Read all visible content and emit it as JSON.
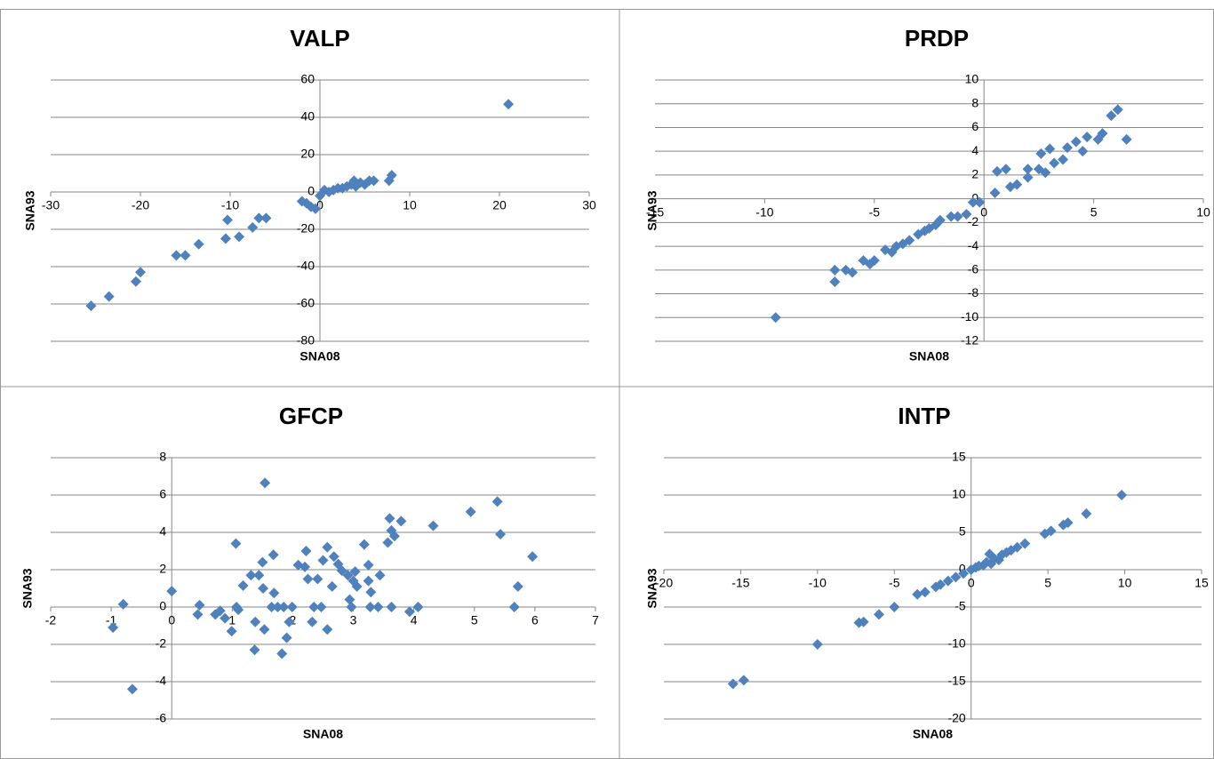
{
  "chart_data": [
    {
      "type": "scatter",
      "title": "VALP",
      "x_label": "SNA08",
      "y_label": "SNA93",
      "color": "#4f81bd",
      "grid": true,
      "xlim": [
        -30,
        30
      ],
      "xticks": [
        -30,
        -20,
        -10,
        0,
        10,
        20,
        30
      ],
      "ylim": [
        -80,
        60
      ],
      "yticks": [
        -80,
        -60,
        -40,
        -20,
        0,
        20,
        40,
        60
      ],
      "x": [
        -25.5,
        -23.5,
        -20.5,
        -20,
        -16,
        -15,
        -13.5,
        -10.5,
        -9,
        -10.3,
        -7.5,
        -6.8,
        -6,
        -2,
        -1.5,
        -1,
        -0.5,
        0,
        0.5,
        1,
        1.5,
        2,
        2.5,
        3,
        3.5,
        3.8,
        4,
        4.5,
        5,
        5.5,
        6,
        7.7,
        8,
        21
      ],
      "values": [
        -61,
        -56,
        -48,
        -43,
        -34,
        -34,
        -28,
        -25,
        -24,
        -15,
        -19,
        -14,
        -14,
        -5,
        -6,
        -8,
        -9,
        -2,
        1,
        0,
        1,
        2,
        2,
        3,
        4,
        6,
        3,
        5,
        4,
        6,
        6,
        6,
        9,
        47
      ]
    },
    {
      "type": "scatter",
      "title": "PRDP",
      "x_label": "SNA08",
      "y_label": "SNA93",
      "color": "#4f81bd",
      "grid": true,
      "xlim": [
        -15,
        10
      ],
      "xticks": [
        -15,
        -10,
        -5,
        0,
        5,
        10
      ],
      "ylim": [
        -12,
        10
      ],
      "yticks": [
        -12,
        -10,
        -8,
        -6,
        -4,
        -2,
        0,
        2,
        4,
        6,
        8,
        10
      ],
      "x": [
        -9.5,
        -6.8,
        -6.8,
        -6.3,
        -6,
        -5.5,
        -5.2,
        -5,
        -4.5,
        -4.2,
        -4,
        -3.7,
        -3.4,
        -3,
        -2.7,
        -2.5,
        -2.2,
        -2,
        -1.5,
        -1.2,
        -0.8,
        -0.5,
        -0.2,
        0.5,
        0.6,
        1,
        1.2,
        1.5,
        2,
        2,
        2.5,
        2.6,
        2.8,
        3,
        3.2,
        3.6,
        3.8,
        4.2,
        4.5,
        4.7,
        5.2,
        5.4,
        5.8,
        6.1,
        6.5
      ],
      "values": [
        -10,
        -7,
        -6,
        -6,
        -6.2,
        -5.2,
        -5.5,
        -5.2,
        -4.3,
        -4.5,
        -4,
        -3.8,
        -3.5,
        -3,
        -2.7,
        -2.5,
        -2.2,
        -1.8,
        -1.5,
        -1.5,
        -1.3,
        -0.3,
        -0.3,
        0.5,
        2.3,
        2.5,
        1,
        1.2,
        1.8,
        2.5,
        2.5,
        3.8,
        2.2,
        4.2,
        3,
        3.3,
        4.3,
        4.8,
        4,
        5.2,
        5,
        5.5,
        7,
        7.5,
        5
      ]
    },
    {
      "type": "scatter",
      "title": "GFCP",
      "x_label": "SNA08",
      "y_label": "SNA93",
      "color": "#4f81bd",
      "grid": true,
      "xlim": [
        -2,
        7
      ],
      "xticks": [
        -2,
        -1,
        0,
        1,
        2,
        3,
        4,
        5,
        6,
        7
      ],
      "ylim": [
        -6,
        8
      ],
      "yticks": [
        -6,
        -4,
        -2,
        0,
        2,
        4,
        6,
        8
      ],
      "x": [
        -0.97,
        -0.8,
        -0.65,
        0,
        0.43,
        0.46,
        0.72,
        0.8,
        0.88,
        0.99,
        1.06,
        1.07,
        1.1,
        1.18,
        1.31,
        1.37,
        1.38,
        1.44,
        1.5,
        1.51,
        1.53,
        1.54,
        1.65,
        1.69,
        1.68,
        1.75,
        1.82,
        1.85,
        1.9,
        1.94,
        1.99,
        2.09,
        2.22,
        2.2,
        2.25,
        2.32,
        2.35,
        2.41,
        2.47,
        2.5,
        2.57,
        2.57,
        2.65,
        2.68,
        2.75,
        2.81,
        2.91,
        2.94,
        2.97,
        3,
        3.03,
        3.06,
        3.18,
        3.25,
        3.25,
        3.29,
        3.28,
        3.41,
        3.44,
        3.63,
        3.57,
        3.6,
        3.63,
        3.68,
        3.79,
        3.93,
        4.07,
        4.32,
        4.94,
        5.38,
        5.43,
        5.66,
        5.72,
        5.96
      ],
      "values": [
        -1.1,
        0.15,
        -4.4,
        0.85,
        -0.4,
        0.1,
        -0.4,
        -0.2,
        -0.6,
        -1.3,
        3.4,
        0,
        -0.15,
        1.15,
        1.7,
        -2.3,
        -0.8,
        1.7,
        2.4,
        1,
        -1.2,
        6.65,
        0,
        0.75,
        2.8,
        0,
        -2.5,
        0,
        -1.65,
        -0.8,
        0,
        2.25,
        3,
        2.15,
        1.5,
        -0.8,
        0,
        1.5,
        0,
        2.5,
        3.2,
        -1.2,
        1.1,
        2.7,
        2.3,
        1.95,
        1.7,
        0.4,
        0,
        1.4,
        1.9,
        1.1,
        3.35,
        2.25,
        1.4,
        0.8,
        0,
        0,
        1.7,
        0,
        3.45,
        4.75,
        4.1,
        3.8,
        4.6,
        -0.25,
        0,
        4.35,
        5.1,
        5.65,
        3.9,
        0,
        1.1,
        2.7
      ]
    },
    {
      "type": "scatter",
      "title": "INTP",
      "x_label": "SNA08",
      "y_label": "SNA93",
      "color": "#4f81bd",
      "grid": true,
      "xlim": [
        -20,
        15
      ],
      "xticks": [
        -20,
        -15,
        -10,
        -5,
        0,
        5,
        10,
        15
      ],
      "ylim": [
        -20,
        15
      ],
      "yticks": [
        -20,
        -15,
        -10,
        -5,
        0,
        5,
        10,
        15
      ],
      "x": [
        -15.5,
        -14.8,
        -10,
        -7.3,
        -7,
        -6,
        -5,
        -3.5,
        -3,
        -2.3,
        -2,
        -1.5,
        -1,
        -0.5,
        0,
        0.3,
        0.5,
        0.8,
        1,
        1.2,
        1.3,
        1.5,
        1.8,
        2,
        2.3,
        2.6,
        3,
        3.5,
        4.8,
        5.2,
        6,
        6.3,
        7.5,
        9.8
      ],
      "values": [
        -15.3,
        -14.8,
        -10,
        -7.1,
        -7,
        -6,
        -5,
        -3.3,
        -3,
        -2.3,
        -2,
        -1.5,
        -1,
        -0.5,
        0,
        0.3,
        0.5,
        0.6,
        1,
        2.1,
        0.8,
        1.5,
        1.3,
        2,
        2.3,
        2.6,
        3,
        3.5,
        4.8,
        5.2,
        6,
        6.3,
        7.5,
        10
      ]
    }
  ]
}
